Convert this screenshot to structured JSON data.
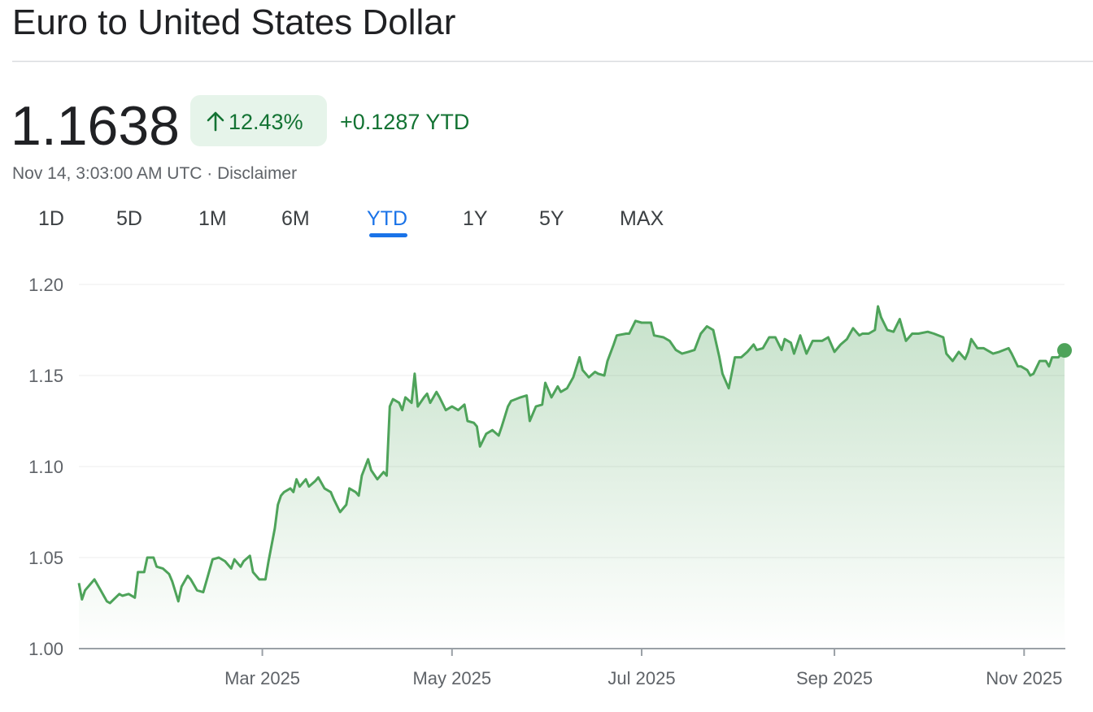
{
  "title": "Euro to United States Dollar",
  "price": "1.1638",
  "change_percent": "12.43%",
  "change_absolute": "+0.1287 YTD",
  "timestamp": "Nov 14, 3:03:00 AM UTC · Disclaimer",
  "ranges": [
    "1D",
    "5D",
    "1M",
    "6M",
    "YTD",
    "1Y",
    "5Y",
    "MAX"
  ],
  "selected_range": "YTD",
  "chart_data": {
    "type": "line",
    "color": "#4ea35a",
    "x": [
      1,
      2,
      3,
      6,
      8,
      10,
      11,
      14,
      15,
      17,
      19,
      20,
      22,
      23,
      25,
      26,
      28,
      30,
      31,
      33,
      34,
      36,
      37,
      39,
      41,
      42,
      44,
      46,
      48,
      50,
      51,
      53,
      54,
      56,
      57,
      59,
      61,
      62,
      64,
      65,
      66,
      67,
      69,
      70,
      71,
      72,
      74,
      75,
      77,
      78,
      80,
      82,
      83,
      85,
      87,
      88,
      90,
      91,
      92,
      94,
      95,
      97,
      99,
      100,
      101,
      102,
      104,
      105,
      106,
      108,
      109,
      110,
      112,
      113,
      114,
      116,
      117,
      119,
      121,
      123,
      125,
      126,
      128,
      129,
      130,
      132,
      134,
      136,
      137,
      139,
      140,
      143,
      145,
      146,
      148,
      150,
      151,
      153,
      155,
      156,
      158,
      160,
      162,
      163,
      165,
      167,
      168,
      170,
      171,
      173,
      174,
      177,
      178,
      180,
      182,
      185,
      186,
      189,
      191,
      193,
      195,
      197,
      199,
      201,
      203,
      205,
      207,
      208,
      210,
      212,
      214,
      216,
      218,
      219,
      221,
      223,
      225,
      227,
      228,
      230,
      231,
      233,
      235,
      237,
      240,
      242,
      244,
      246,
      248,
      250,
      252,
      253,
      255,
      257,
      258,
      259,
      261,
      263,
      265,
      266,
      267,
      269,
      271,
      274,
      276,
      279,
      280,
      282,
      284,
      286,
      287,
      288,
      290,
      292,
      295,
      297,
      300,
      301,
      303,
      304,
      306,
      307,
      308,
      310,
      312,
      313,
      314,
      316,
      318
    ],
    "values": [
      1.036,
      1.027,
      1.032,
      1.038,
      1.032,
      1.026,
      1.025,
      1.03,
      1.029,
      1.03,
      1.028,
      1.042,
      1.042,
      1.05,
      1.05,
      1.045,
      1.044,
      1.041,
      1.037,
      1.026,
      1.034,
      1.04,
      1.038,
      1.032,
      1.031,
      1.037,
      1.049,
      1.05,
      1.048,
      1.044,
      1.049,
      1.045,
      1.048,
      1.051,
      1.042,
      1.038,
      1.038,
      1.048,
      1.066,
      1.079,
      1.084,
      1.086,
      1.088,
      1.086,
      1.093,
      1.089,
      1.093,
      1.089,
      1.092,
      1.094,
      1.088,
      1.086,
      1.082,
      1.075,
      1.079,
      1.088,
      1.086,
      1.084,
      1.095,
      1.104,
      1.098,
      1.093,
      1.097,
      1.095,
      1.133,
      1.137,
      1.135,
      1.131,
      1.138,
      1.135,
      1.151,
      1.133,
      1.138,
      1.14,
      1.135,
      1.141,
      1.138,
      1.131,
      1.133,
      1.131,
      1.134,
      1.125,
      1.124,
      1.122,
      1.111,
      1.118,
      1.12,
      1.117,
      1.122,
      1.133,
      1.136,
      1.138,
      1.139,
      1.125,
      1.133,
      1.134,
      1.146,
      1.138,
      1.144,
      1.141,
      1.143,
      1.149,
      1.16,
      1.153,
      1.149,
      1.152,
      1.151,
      1.15,
      1.158,
      1.167,
      1.172,
      1.173,
      1.173,
      1.18,
      1.179,
      1.179,
      1.172,
      1.171,
      1.169,
      1.164,
      1.162,
      1.163,
      1.164,
      1.173,
      1.177,
      1.175,
      1.16,
      1.151,
      1.143,
      1.16,
      1.16,
      1.163,
      1.167,
      1.164,
      1.165,
      1.171,
      1.171,
      1.164,
      1.17,
      1.168,
      1.162,
      1.172,
      1.162,
      1.169,
      1.169,
      1.171,
      1.163,
      1.167,
      1.17,
      1.176,
      1.172,
      1.173,
      1.173,
      1.175,
      1.188,
      1.182,
      1.175,
      1.174,
      1.181,
      1.175,
      1.169,
      1.173,
      1.173,
      1.174,
      1.173,
      1.171,
      1.162,
      1.158,
      1.163,
      1.159,
      1.163,
      1.17,
      1.165,
      1.165,
      1.162,
      1.163,
      1.165,
      1.162,
      1.155,
      1.155,
      1.153,
      1.15,
      1.151,
      1.158,
      1.158,
      1.155,
      1.16,
      1.16,
      1.1638
    ],
    "xlim": [
      1,
      318
    ],
    "xticks": [
      {
        "value": 60,
        "label": "Mar 2025"
      },
      {
        "value": 121,
        "label": "May 2025"
      },
      {
        "value": 182,
        "label": "Jul 2025"
      },
      {
        "value": 244,
        "label": "Sep 2025"
      },
      {
        "value": 305,
        "label": "Nov 2025"
      }
    ],
    "ylim": [
      1.0,
      1.2
    ],
    "yticks": [
      {
        "value": 1.0,
        "label": "1.00"
      },
      1.05,
      {
        "value": 1.1,
        "label": "1.10"
      },
      1.15,
      {
        "value": 1.2,
        "label": "1.20"
      }
    ],
    "grid": true
  }
}
